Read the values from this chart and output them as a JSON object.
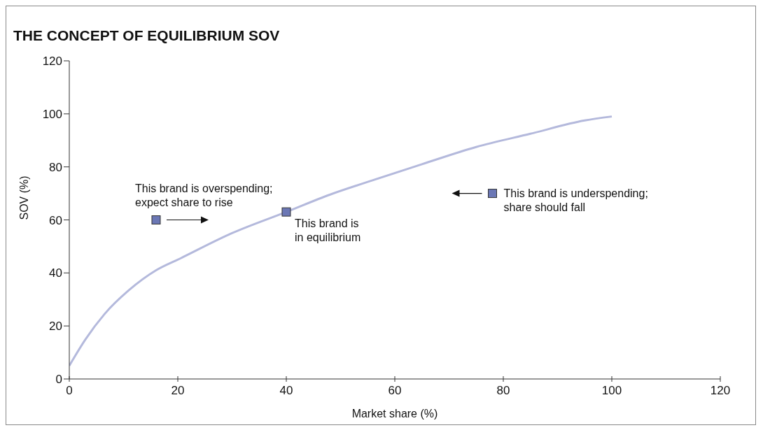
{
  "chart_data": {
    "type": "line",
    "title": "THE CONCEPT OF EQUILIBRIUM SOV",
    "xlabel": "Market share (%)",
    "ylabel": "SOV (%)",
    "xlim": [
      0,
      120
    ],
    "ylim": [
      0,
      120
    ],
    "xticks": [
      0,
      20,
      40,
      60,
      80,
      100,
      120
    ],
    "yticks": [
      0,
      20,
      40,
      60,
      80,
      100,
      120
    ],
    "series": [
      {
        "type": "line",
        "color": "#b4b9dc",
        "x": [
          0,
          3,
          6.5,
          11,
          16,
          20.5,
          30,
          40,
          48,
          56,
          65,
          75,
          85,
          95,
          100
        ],
        "values": [
          5,
          15,
          24.5,
          33.5,
          41,
          45.5,
          55,
          63,
          69.5,
          75,
          81,
          87.5,
          92.5,
          97.5,
          99
        ]
      },
      {
        "type": "scatter",
        "marker": "square",
        "color": "#6b77b5",
        "x": [
          16,
          40,
          78
        ],
        "values": [
          60,
          63,
          70
        ]
      }
    ],
    "annotations": [
      {
        "text": "This brand is overspending;\nexpect share to rise",
        "x": 16,
        "y": 60
      },
      {
        "text": "This brand is\nin equilibrium",
        "x": 40,
        "y": 63
      },
      {
        "text": "This brand is underspending;\nshare should fall",
        "x": 78,
        "y": 70
      }
    ]
  }
}
